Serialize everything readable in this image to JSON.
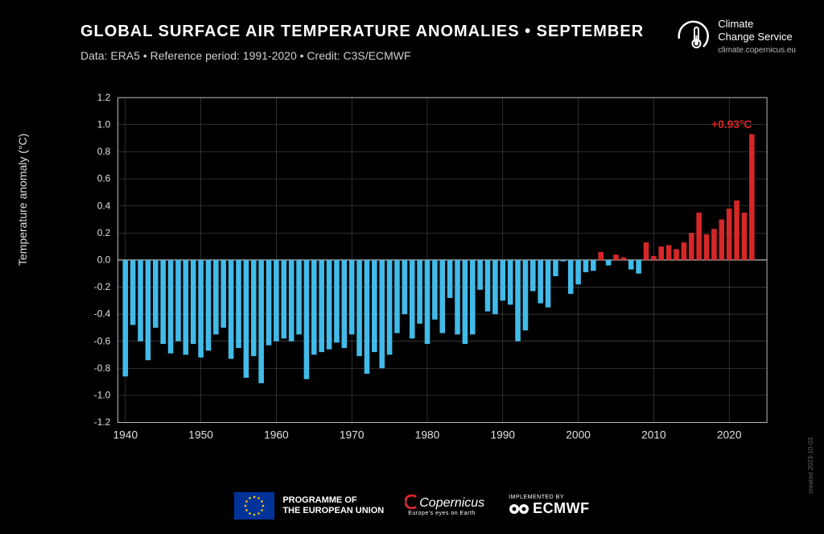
{
  "header": {
    "title": "GLOBAL SURFACE AIR TEMPERATURE ANOMALIES • SEPTEMBER",
    "subtitle": "Data: ERA5 • Reference period: 1991-2020 • Credit: C3S/ECMWF"
  },
  "logo": {
    "line1": "Climate",
    "line2": "Change Service",
    "url": "climate.copernicus.eu"
  },
  "chart": {
    "type": "bar",
    "ylabel": "Temperature anomaly (°C)",
    "xlim": [
      1939,
      2025
    ],
    "ylim": [
      -1.2,
      1.2
    ],
    "yticks": [
      -1.2,
      -1.0,
      -0.8,
      -0.6,
      -0.4,
      -0.2,
      0.0,
      0.2,
      0.4,
      0.6,
      0.8,
      1.0,
      1.2
    ],
    "xticks": [
      1940,
      1950,
      1960,
      1970,
      1980,
      1990,
      2000,
      2010,
      2020
    ],
    "grid_color": "#555555",
    "axis_color": "#cccccc",
    "background_color": "#000000",
    "positive_color": "#d62728",
    "negative_color": "#42bbe8",
    "bar_width": 0.7,
    "annotation": {
      "year": 2023,
      "value": 0.93,
      "label": "+0.93°C"
    },
    "title_fontsize": 20,
    "label_fontsize": 14,
    "tick_fontsize": 13,
    "years": [
      1940,
      1941,
      1942,
      1943,
      1944,
      1945,
      1946,
      1947,
      1948,
      1949,
      1950,
      1951,
      1952,
      1953,
      1954,
      1955,
      1956,
      1957,
      1958,
      1959,
      1960,
      1961,
      1962,
      1963,
      1964,
      1965,
      1966,
      1967,
      1968,
      1969,
      1970,
      1971,
      1972,
      1973,
      1974,
      1975,
      1976,
      1977,
      1978,
      1979,
      1980,
      1981,
      1982,
      1983,
      1984,
      1985,
      1986,
      1987,
      1988,
      1989,
      1990,
      1991,
      1992,
      1993,
      1994,
      1995,
      1996,
      1997,
      1998,
      1999,
      2000,
      2001,
      2002,
      2003,
      2004,
      2005,
      2006,
      2007,
      2008,
      2009,
      2010,
      2011,
      2012,
      2013,
      2014,
      2015,
      2016,
      2017,
      2018,
      2019,
      2020,
      2021,
      2022,
      2023
    ],
    "values": [
      -0.86,
      -0.48,
      -0.6,
      -0.74,
      -0.5,
      -0.62,
      -0.69,
      -0.6,
      -0.7,
      -0.62,
      -0.72,
      -0.67,
      -0.55,
      -0.5,
      -0.73,
      -0.65,
      -0.87,
      -0.71,
      -0.91,
      -0.63,
      -0.6,
      -0.58,
      -0.6,
      -0.55,
      -0.88,
      -0.7,
      -0.68,
      -0.66,
      -0.61,
      -0.65,
      -0.55,
      -0.71,
      -0.84,
      -0.68,
      -0.8,
      -0.7,
      -0.54,
      -0.4,
      -0.58,
      -0.47,
      -0.62,
      -0.44,
      -0.54,
      -0.28,
      -0.55,
      -0.62,
      -0.55,
      -0.22,
      -0.38,
      -0.4,
      -0.3,
      -0.33,
      -0.6,
      -0.52,
      -0.23,
      -0.32,
      -0.35,
      -0.12,
      -0.01,
      -0.25,
      -0.18,
      -0.09,
      -0.08,
      0.06,
      -0.04,
      0.04,
      0.02,
      -0.07,
      -0.1,
      0.13,
      0.03,
      0.1,
      0.11,
      0.08,
      0.13,
      0.2,
      0.35,
      0.19,
      0.23,
      0.3,
      0.38,
      0.44,
      0.35,
      0.93
    ]
  },
  "footer": {
    "programme_line1": "PROGRAMME OF",
    "programme_line2": "THE EUROPEAN UNION",
    "copernicus": "Copernicus",
    "copernicus_tag": "Europe's eyes on Earth",
    "implemented": "IMPLEMENTED BY",
    "ecmwf": "ECMWF"
  },
  "created": "created 2023-10-03",
  "colors": {
    "text": "#ffffff",
    "subtext": "#d0d0d0",
    "eu_blue": "#003399",
    "eu_gold": "#ffcc00"
  }
}
